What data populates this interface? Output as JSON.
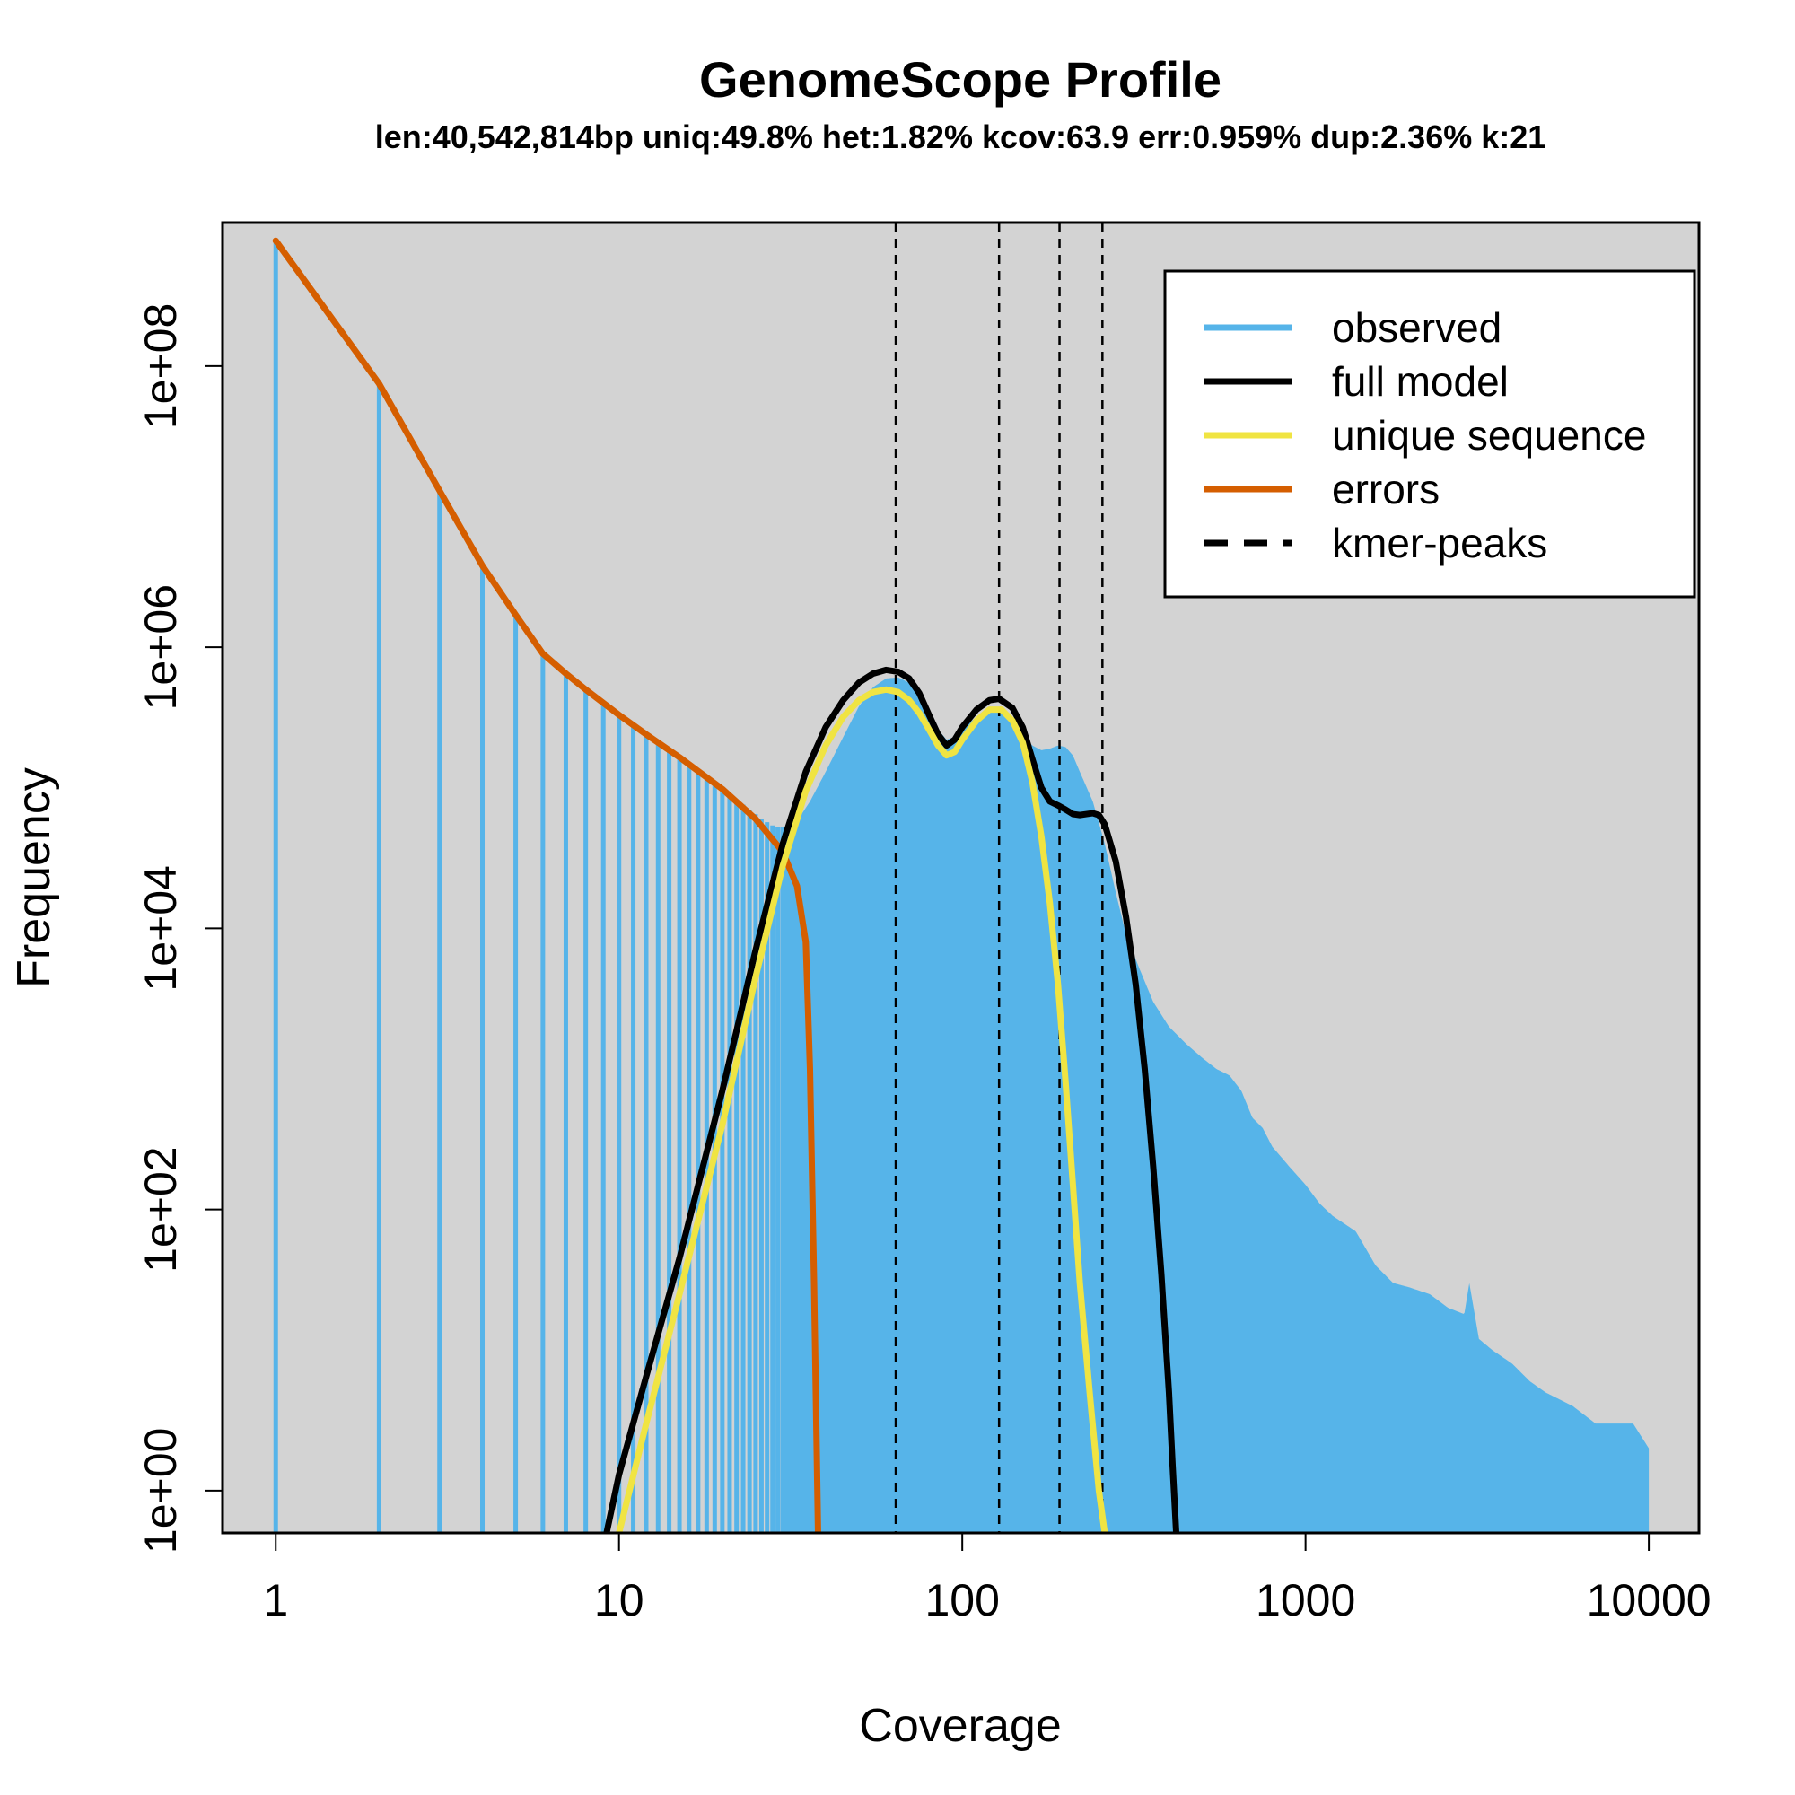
{
  "chart_data": {
    "type": "line",
    "title": "GenomeScope Profile",
    "subtitle": "len:40,542,814bp uniq:49.8%  het:1.82% kcov:63.9 err:0.959%  dup:2.36%  k:21",
    "xlabel": "Coverage",
    "ylabel": "Frequency",
    "x_scale": "log",
    "y_scale": "log",
    "xlim": [
      0.7,
      14000
    ],
    "ylim": [
      0.5,
      1050000000.0
    ],
    "x_ticks": [
      1,
      10,
      100,
      1000,
      10000
    ],
    "x_tick_labels": [
      "1",
      "10",
      "100",
      "1000",
      "10000"
    ],
    "y_ticks": [
      1,
      100,
      10000,
      1000000,
      100000000
    ],
    "y_tick_labels": [
      "1e+00",
      "1e+02",
      "1e+04",
      "1e+06",
      "1e+08"
    ],
    "background": "#d3d3d3",
    "grid": false,
    "legend_position": "top-right",
    "kmer_peaks": [
      64,
      128,
      192,
      256
    ],
    "series": [
      {
        "name": "observed",
        "style": "histogram",
        "color": "#56b4e9",
        "points": [
          [
            1,
            780000000
          ],
          [
            2,
            75000000
          ],
          [
            3,
            13000000
          ],
          [
            4,
            3800000
          ],
          [
            5,
            1700000
          ],
          [
            6,
            900000
          ],
          [
            7,
            650000
          ],
          [
            8,
            500000
          ],
          [
            9,
            400000
          ],
          [
            10,
            330000
          ],
          [
            11,
            280000
          ],
          [
            12,
            240000
          ],
          [
            13,
            210000
          ],
          [
            14,
            185000
          ],
          [
            15,
            165000
          ],
          [
            16,
            148000
          ],
          [
            17,
            133000
          ],
          [
            18,
            120000
          ],
          [
            19,
            108000
          ],
          [
            20,
            98000
          ],
          [
            21,
            90000
          ],
          [
            22,
            82000
          ],
          [
            23,
            76000
          ],
          [
            24,
            70000
          ],
          [
            25,
            65000
          ],
          [
            26,
            60000
          ],
          [
            28,
            54000
          ],
          [
            30,
            52000
          ],
          [
            33,
            58000
          ],
          [
            36,
            80000
          ],
          [
            40,
            130000
          ],
          [
            45,
            230000
          ],
          [
            50,
            380000
          ],
          [
            55,
            520000
          ],
          [
            60,
            600000
          ],
          [
            65,
            610000
          ],
          [
            70,
            560000
          ],
          [
            75,
            450000
          ],
          [
            80,
            340000
          ],
          [
            85,
            260000
          ],
          [
            90,
            220000
          ],
          [
            95,
            230000
          ],
          [
            100,
            260000
          ],
          [
            110,
            320000
          ],
          [
            120,
            350000
          ],
          [
            130,
            340000
          ],
          [
            140,
            300000
          ],
          [
            150,
            240000
          ],
          [
            160,
            200000
          ],
          [
            170,
            185000
          ],
          [
            180,
            190000
          ],
          [
            190,
            200000
          ],
          [
            200,
            195000
          ],
          [
            210,
            170000
          ],
          [
            220,
            130000
          ],
          [
            240,
            80000
          ],
          [
            260,
            40000
          ],
          [
            280,
            18000
          ],
          [
            300,
            9000
          ],
          [
            330,
            5000
          ],
          [
            360,
            3000
          ],
          [
            400,
            2000
          ],
          [
            450,
            1500
          ],
          [
            500,
            1200
          ],
          [
            550,
            1000
          ],
          [
            600,
            900
          ],
          [
            650,
            700
          ],
          [
            700,
            450
          ],
          [
            750,
            380
          ],
          [
            800,
            280
          ],
          [
            900,
            200
          ],
          [
            1000,
            150
          ],
          [
            1100,
            110
          ],
          [
            1200,
            90
          ],
          [
            1400,
            70
          ],
          [
            1600,
            40
          ],
          [
            1800,
            30
          ],
          [
            2000,
            28
          ],
          [
            2300,
            25
          ],
          [
            2600,
            20
          ],
          [
            2900,
            18
          ],
          [
            3000,
            30
          ],
          [
            3200,
            12
          ],
          [
            3500,
            10
          ],
          [
            4000,
            8
          ],
          [
            4500,
            6
          ],
          [
            5000,
            5
          ],
          [
            6000,
            4
          ],
          [
            7000,
            3
          ],
          [
            8000,
            3
          ],
          [
            9000,
            3
          ],
          [
            10000,
            2
          ]
        ]
      },
      {
        "name": "full model",
        "style": "line",
        "color": "#000000",
        "points": [
          [
            9.2,
            0.5
          ],
          [
            10,
            1.3
          ],
          [
            12,
            6.5
          ],
          [
            15,
            45
          ],
          [
            20,
            700
          ],
          [
            25,
            7000
          ],
          [
            30,
            40000
          ],
          [
            35,
            130000
          ],
          [
            40,
            270000
          ],
          [
            45,
            420000
          ],
          [
            50,
            560000
          ],
          [
            55,
            650000
          ],
          [
            60,
            690000
          ],
          [
            65,
            670000
          ],
          [
            70,
            600000
          ],
          [
            75,
            470000
          ],
          [
            80,
            330000
          ],
          [
            85,
            240000
          ],
          [
            90,
            200000
          ],
          [
            95,
            220000
          ],
          [
            100,
            270000
          ],
          [
            110,
            360000
          ],
          [
            120,
            420000
          ],
          [
            128,
            430000
          ],
          [
            140,
            370000
          ],
          [
            150,
            270000
          ],
          [
            160,
            160000
          ],
          [
            170,
            100000
          ],
          [
            180,
            80000
          ],
          [
            190,
            75000
          ],
          [
            200,
            70000
          ],
          [
            210,
            65000
          ],
          [
            220,
            64000
          ],
          [
            230,
            65000
          ],
          [
            240,
            66000
          ],
          [
            250,
            64000
          ],
          [
            260,
            55000
          ],
          [
            280,
            30000
          ],
          [
            300,
            12000
          ],
          [
            320,
            4000
          ],
          [
            340,
            1000
          ],
          [
            360,
            200
          ],
          [
            380,
            35
          ],
          [
            400,
            5
          ],
          [
            410,
            1.5
          ],
          [
            420,
            0.5
          ]
        ]
      },
      {
        "name": "unique sequence",
        "style": "line",
        "color": "#f0e442",
        "points": [
          [
            10,
            0.5
          ],
          [
            12,
            3
          ],
          [
            15,
            25
          ],
          [
            20,
            400
          ],
          [
            25,
            4500
          ],
          [
            30,
            28000
          ],
          [
            35,
            95000
          ],
          [
            40,
            200000
          ],
          [
            45,
            320000
          ],
          [
            50,
            420000
          ],
          [
            55,
            480000
          ],
          [
            60,
            500000
          ],
          [
            65,
            480000
          ],
          [
            70,
            420000
          ],
          [
            75,
            340000
          ],
          [
            80,
            260000
          ],
          [
            85,
            200000
          ],
          [
            90,
            170000
          ],
          [
            95,
            180000
          ],
          [
            100,
            220000
          ],
          [
            110,
            300000
          ],
          [
            120,
            360000
          ],
          [
            130,
            360000
          ],
          [
            140,
            300000
          ],
          [
            150,
            210000
          ],
          [
            160,
            110000
          ],
          [
            170,
            45000
          ],
          [
            180,
            15000
          ],
          [
            190,
            4000
          ],
          [
            200,
            800
          ],
          [
            210,
            150
          ],
          [
            220,
            30
          ],
          [
            235,
            5
          ],
          [
            250,
            1
          ],
          [
            260,
            0.5
          ]
        ]
      },
      {
        "name": "errors",
        "style": "line",
        "color": "#d55e00",
        "points": [
          [
            1,
            780000000
          ],
          [
            2,
            75000000
          ],
          [
            3,
            13000000
          ],
          [
            4,
            3800000
          ],
          [
            5,
            1700000
          ],
          [
            6,
            900000
          ],
          [
            7,
            650000
          ],
          [
            8,
            500000
          ],
          [
            10,
            330000
          ],
          [
            12,
            240000
          ],
          [
            15,
            165000
          ],
          [
            20,
            98000
          ],
          [
            25,
            60000
          ],
          [
            30,
            35000
          ],
          [
            33,
            20000
          ],
          [
            35,
            8000
          ],
          [
            36,
            1000
          ],
          [
            37,
            30
          ],
          [
            38,
            0.5
          ]
        ]
      },
      {
        "name": "kmer-peaks",
        "style": "dashed",
        "color": "#000000"
      }
    ]
  }
}
